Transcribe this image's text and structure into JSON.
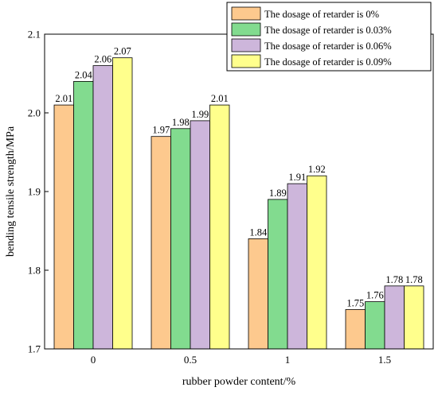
{
  "chart_data": {
    "type": "bar",
    "categories": [
      "0",
      "0.5",
      "1",
      "1.5"
    ],
    "series": [
      {
        "name": "The dosage of retarder is 0%",
        "values": [
          2.01,
          1.97,
          1.84,
          1.75
        ],
        "labels": [
          "2.01",
          "1.97",
          "1.84",
          "1.75"
        ],
        "color": "#FDC98E"
      },
      {
        "name": "The dosage of retarder is 0.03%",
        "values": [
          2.04,
          1.98,
          1.89,
          1.76
        ],
        "labels": [
          "2.04",
          "1.98",
          "1.89",
          "1.76"
        ],
        "color": "#82DB8F"
      },
      {
        "name": "The dosage of retarder is 0.06%",
        "values": [
          2.06,
          1.99,
          1.91,
          1.78
        ],
        "labels": [
          "2.06",
          "1.99",
          "1.91",
          "1.78"
        ],
        "color": "#CDB6DB"
      },
      {
        "name": "The dosage of retarder is 0.09%",
        "values": [
          2.07,
          2.01,
          1.92,
          1.78
        ],
        "labels": [
          "2.07",
          "2.01",
          "1.92",
          "1.78"
        ],
        "color": "#FFFF8C"
      }
    ],
    "xlabel": "rubber powder content/%",
    "ylabel": "bending tensile strength/MPa",
    "ylim": [
      1.7,
      2.1
    ],
    "yticks": [
      "1.7",
      "1.8",
      "1.9",
      "2.0",
      "2.1"
    ],
    "grid": false,
    "legend_position": "top-right"
  }
}
